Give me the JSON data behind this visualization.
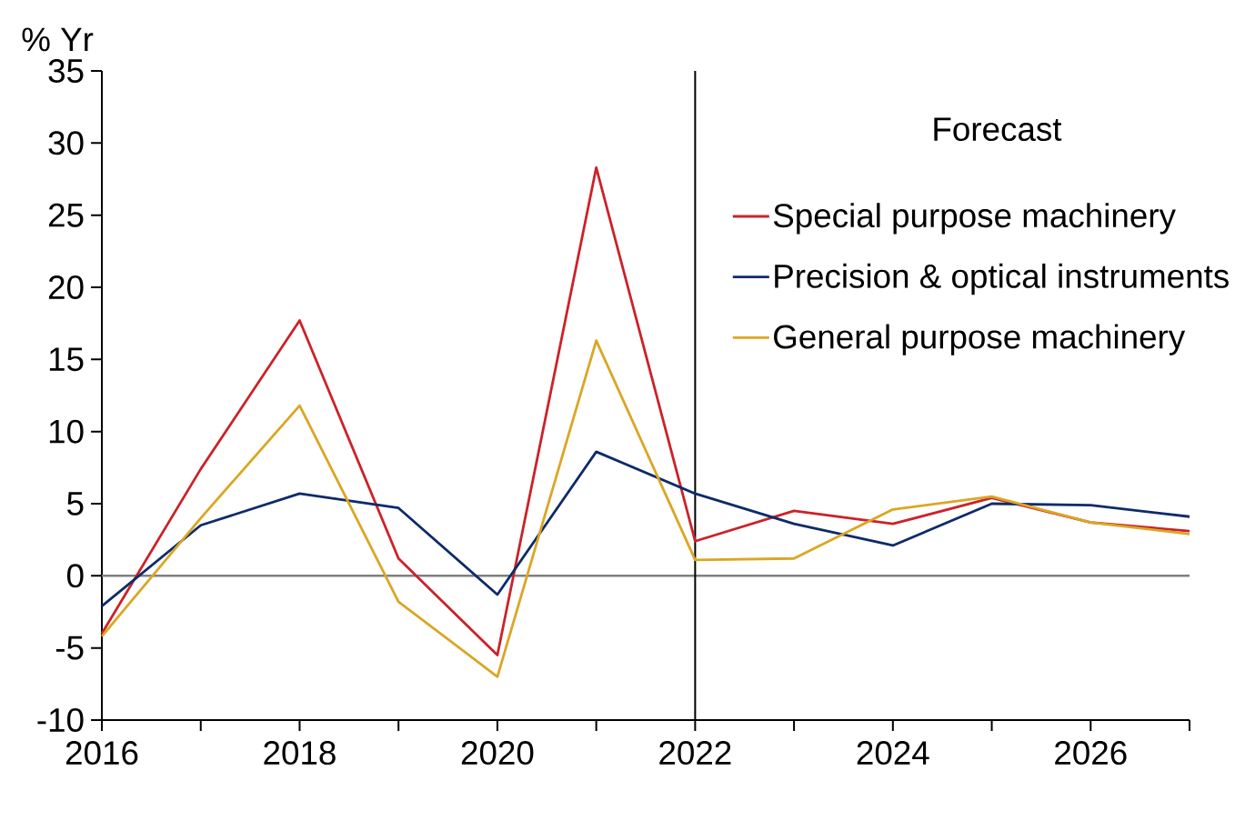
{
  "chart_data": {
    "type": "line",
    "ylabel": "% Yr",
    "x": [
      2016,
      2017,
      2018,
      2019,
      2020,
      2021,
      2022,
      2023,
      2024,
      2025,
      2026,
      2027
    ],
    "series": [
      {
        "name": "Special purpose machinery",
        "color": "#cc2229",
        "values": [
          -4.0,
          7.4,
          17.7,
          1.2,
          -5.5,
          28.3,
          2.4,
          4.5,
          3.6,
          5.4,
          3.7,
          3.1
        ]
      },
      {
        "name": "Precision & optical instruments",
        "color": "#0d2b6b",
        "values": [
          -2.1,
          3.5,
          5.7,
          4.7,
          -1.3,
          8.6,
          5.7,
          3.6,
          2.1,
          5.0,
          4.9,
          4.1
        ]
      },
      {
        "name": "General purpose machinery",
        "color": "#dba624",
        "values": [
          -4.2,
          4.0,
          11.8,
          -1.8,
          -7.0,
          16.3,
          1.1,
          1.2,
          4.6,
          5.5,
          3.7,
          2.9
        ]
      }
    ],
    "xlim": [
      2016,
      2027
    ],
    "ylim": [
      -10,
      35
    ],
    "xticks": [
      2016,
      {
        "value": 2017,
        "label": null
      },
      2018,
      {
        "value": 2019,
        "label": null
      },
      2020,
      {
        "value": 2021,
        "label": null
      },
      2022,
      {
        "value": 2023,
        "label": null
      },
      2024,
      {
        "value": 2025,
        "label": null
      },
      2026,
      {
        "value": 2027,
        "label": null
      }
    ],
    "yticks": [
      -10,
      -5,
      0,
      5,
      10,
      15,
      20,
      25,
      30,
      35
    ],
    "ref_lines": [
      {
        "axis": "y",
        "value": 0,
        "color": "#808080"
      },
      {
        "axis": "x",
        "value": 2022,
        "color": "#000000"
      }
    ],
    "annotations": [
      "Forecast"
    ],
    "legend": "top right",
    "line_style": "solid"
  }
}
